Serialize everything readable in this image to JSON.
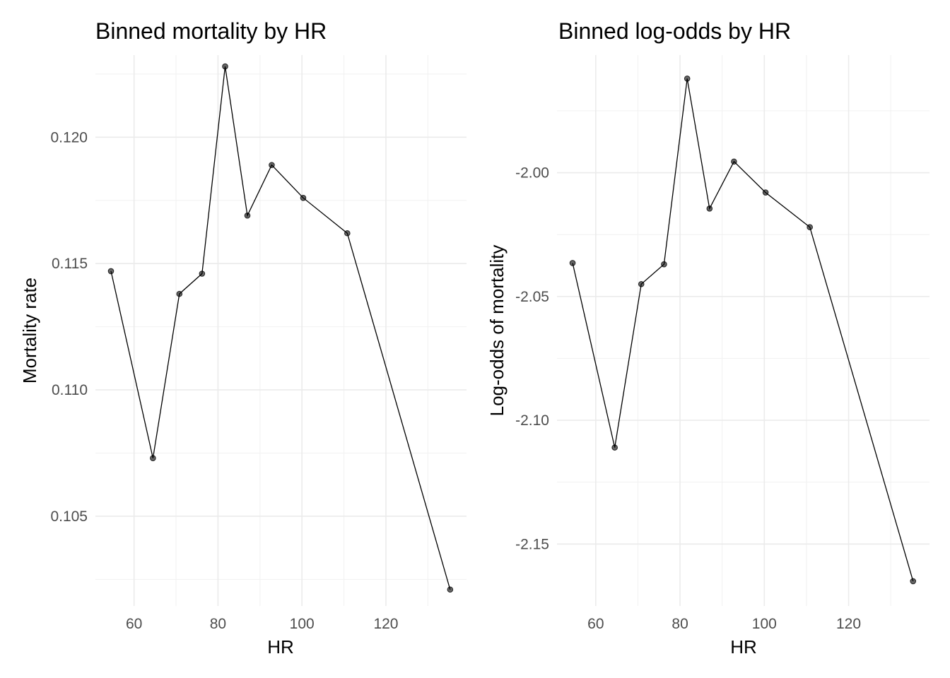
{
  "chart_data": [
    {
      "type": "line",
      "title": "Binned mortality by HR",
      "xlabel": "HR",
      "ylabel": "Mortality rate",
      "xlim": [
        50.8,
        139.2
      ],
      "ylim": [
        0.10145,
        0.12325
      ],
      "x_ticks": [
        60,
        80,
        100,
        120
      ],
      "x_tick_labels": [
        "60",
        "80",
        "100",
        "120"
      ],
      "y_ticks": [
        0.105,
        0.11,
        0.115,
        0.12
      ],
      "y_tick_labels": [
        "0.105",
        "0.110",
        "0.115",
        "0.120"
      ],
      "grid": true,
      "markers": true,
      "x": [
        54.5,
        64.5,
        70.8,
        76.2,
        81.7,
        87.0,
        92.8,
        100.3,
        110.8,
        135.3
      ],
      "y": [
        0.1147,
        0.1073,
        0.1138,
        0.1146,
        0.1228,
        0.1169,
        0.1189,
        0.1176,
        0.1162,
        0.1021
      ]
    },
    {
      "type": "line",
      "title": "Binned log-odds by HR",
      "xlabel": "HR",
      "ylabel": "Log-odds of mortality",
      "xlim": [
        50.8,
        139.2
      ],
      "ylim": [
        -2.175,
        -1.9525
      ],
      "x_ticks": [
        60,
        80,
        100,
        120
      ],
      "x_tick_labels": [
        "60",
        "80",
        "100",
        "120"
      ],
      "y_ticks": [
        -2.15,
        -2.1,
        -2.05,
        -2.0
      ],
      "y_tick_labels": [
        "-2.15",
        "-2.10",
        "-2.05",
        "-2.00"
      ],
      "grid": true,
      "markers": true,
      "x": [
        54.5,
        64.5,
        70.8,
        76.2,
        81.7,
        87.0,
        92.8,
        100.3,
        110.8,
        135.3
      ],
      "y": [
        -2.0365,
        -2.111,
        -2.045,
        -2.037,
        -1.962,
        -2.0145,
        -1.9955,
        -2.008,
        -2.022,
        -2.165
      ]
    }
  ]
}
